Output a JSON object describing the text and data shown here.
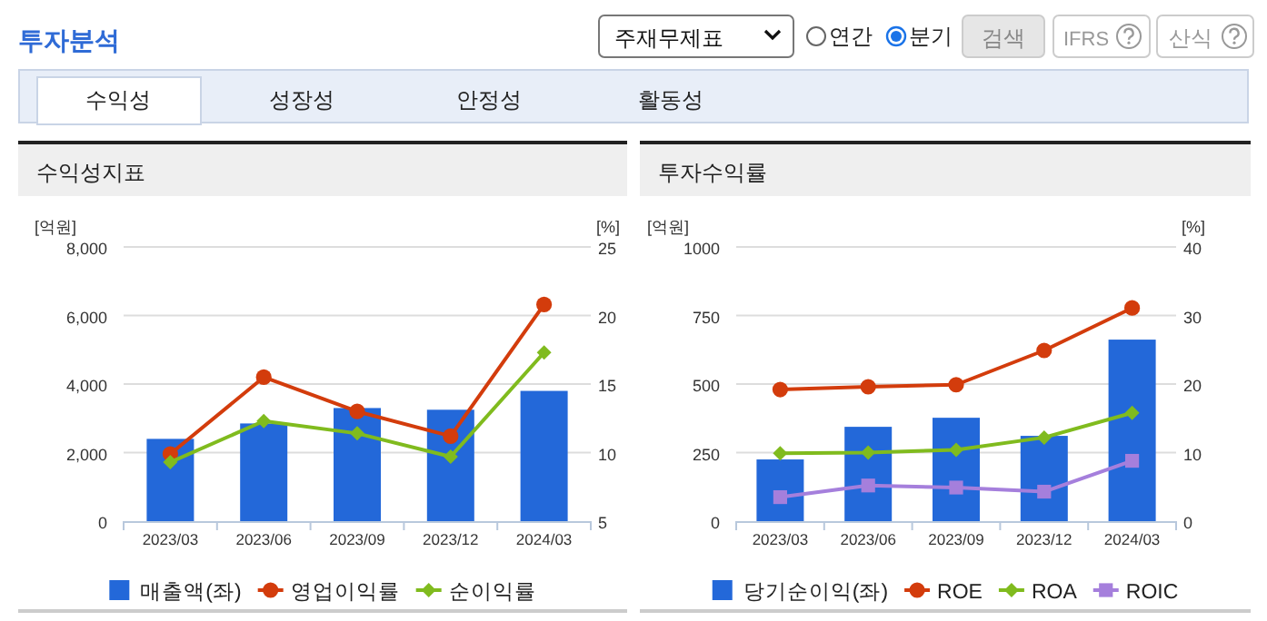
{
  "chart_data": [
    {
      "type": "bar",
      "title": "수익성지표",
      "ylabel": "[억원]",
      "y2label": "[%]",
      "categories": [
        "2023/03",
        "2023/06",
        "2023/09",
        "2023/12",
        "2024/03"
      ],
      "ylim": [
        0,
        8000
      ],
      "yticks": [
        {
          "value": 0,
          "label": "0"
        },
        {
          "value": 2000,
          "label": "2,000"
        },
        {
          "value": 4000,
          "label": "4,000"
        },
        {
          "value": 6000,
          "label": "6,000"
        },
        {
          "value": 8000,
          "label": "8,000"
        }
      ],
      "y2lim": [
        5,
        25
      ],
      "y2ticks": [
        5,
        10,
        15,
        20,
        25
      ],
      "grid": "y",
      "legend": "bottom",
      "annotations": [
        "투자분석",
        "주재무제표",
        "연간",
        "분기",
        "검색",
        "IFRS",
        "산식",
        "수익성",
        "성장성",
        "안정성",
        "활동성"
      ],
      "series": [
        {
          "name": "매출액(좌)",
          "color": "#2368d9",
          "values": [
            2400,
            2850,
            3300,
            3250,
            3800
          ]
        },
        {
          "name": "영업이익률",
          "type": "line",
          "axis": "y2",
          "marker": "circle",
          "color": "#d33c0c",
          "values": [
            9.9,
            15.5,
            13.0,
            11.2,
            20.8
          ]
        },
        {
          "name": "순이익률",
          "type": "line",
          "axis": "y2",
          "marker": "diamond",
          "color": "#80bb1e",
          "values": [
            9.3,
            12.3,
            11.4,
            9.7,
            17.3
          ]
        }
      ]
    },
    {
      "type": "bar",
      "title": "투자수익률",
      "ylabel": "[억원]",
      "y2label": "[%]",
      "categories": [
        "2023/03",
        "2023/06",
        "2023/09",
        "2023/12",
        "2024/03"
      ],
      "ylim": [
        0,
        1000
      ],
      "yticks": [
        0,
        250,
        500,
        750,
        1000
      ],
      "y2lim": [
        0,
        40
      ],
      "y2ticks": [
        0,
        10,
        20,
        30,
        40
      ],
      "grid": "y",
      "legend": "bottom",
      "series": [
        {
          "name": "당기순이익(좌)",
          "color": "#2368d9",
          "values": [
            225,
            344,
            377,
            311,
            662
          ]
        },
        {
          "name": "ROE",
          "type": "line",
          "axis": "y2",
          "marker": "circle",
          "color": "#d33c0c",
          "values": [
            19.2,
            19.6,
            19.9,
            24.9,
            31.1
          ]
        },
        {
          "name": "ROA",
          "type": "line",
          "axis": "y2",
          "marker": "diamond",
          "color": "#80bb1e",
          "values": [
            9.9,
            10.0,
            10.4,
            12.2,
            15.8
          ]
        },
        {
          "name": "ROIC",
          "type": "line",
          "axis": "y2",
          "marker": "square",
          "color": "#a57fdc",
          "values": [
            3.5,
            5.2,
            4.9,
            4.3,
            8.8
          ]
        }
      ]
    }
  ]
}
